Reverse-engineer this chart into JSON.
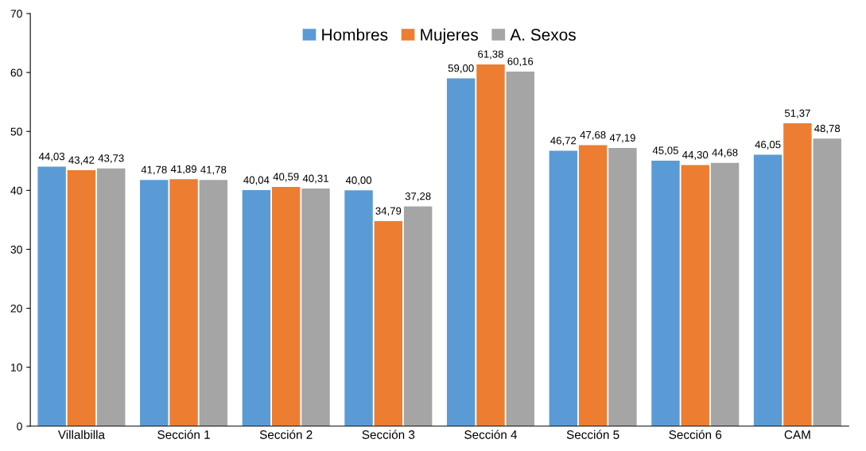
{
  "chart_data": {
    "type": "bar",
    "categories": [
      "Villalbilla",
      "Sección 1",
      "Sección 2",
      "Sección 3",
      "Sección 4",
      "Sección 5",
      "Sección 6",
      "CAM"
    ],
    "series": [
      {
        "name": "Hombres",
        "color": "#5b9bd5",
        "values": [
          44.03,
          41.78,
          40.04,
          40.0,
          59.0,
          46.72,
          45.05,
          46.05
        ],
        "value_labels": [
          "44,03",
          "41,78",
          "40,04",
          "40,00",
          "59,00",
          "46,72",
          "45,05",
          "46,05"
        ]
      },
      {
        "name": "Mujeres",
        "color": "#ed7d31",
        "values": [
          43.42,
          41.89,
          40.59,
          34.79,
          61.38,
          47.68,
          44.3,
          51.37
        ],
        "value_labels": [
          "43,42",
          "41,89",
          "40,59",
          "34,79",
          "61,38",
          "47,68",
          "44,30",
          "51,37"
        ]
      },
      {
        "name": "A. Sexos",
        "color": "#a5a5a5",
        "values": [
          43.73,
          41.78,
          40.31,
          37.28,
          60.16,
          47.19,
          44.68,
          48.78
        ],
        "value_labels": [
          "43,73",
          "41,78",
          "40,31",
          "37,28",
          "60,16",
          "47,19",
          "44,68",
          "48,78"
        ]
      }
    ],
    "ylim": [
      0,
      70
    ],
    "yticks": [
      0,
      10,
      20,
      30,
      40,
      50,
      60,
      70
    ],
    "grid": false,
    "legend": "top"
  }
}
